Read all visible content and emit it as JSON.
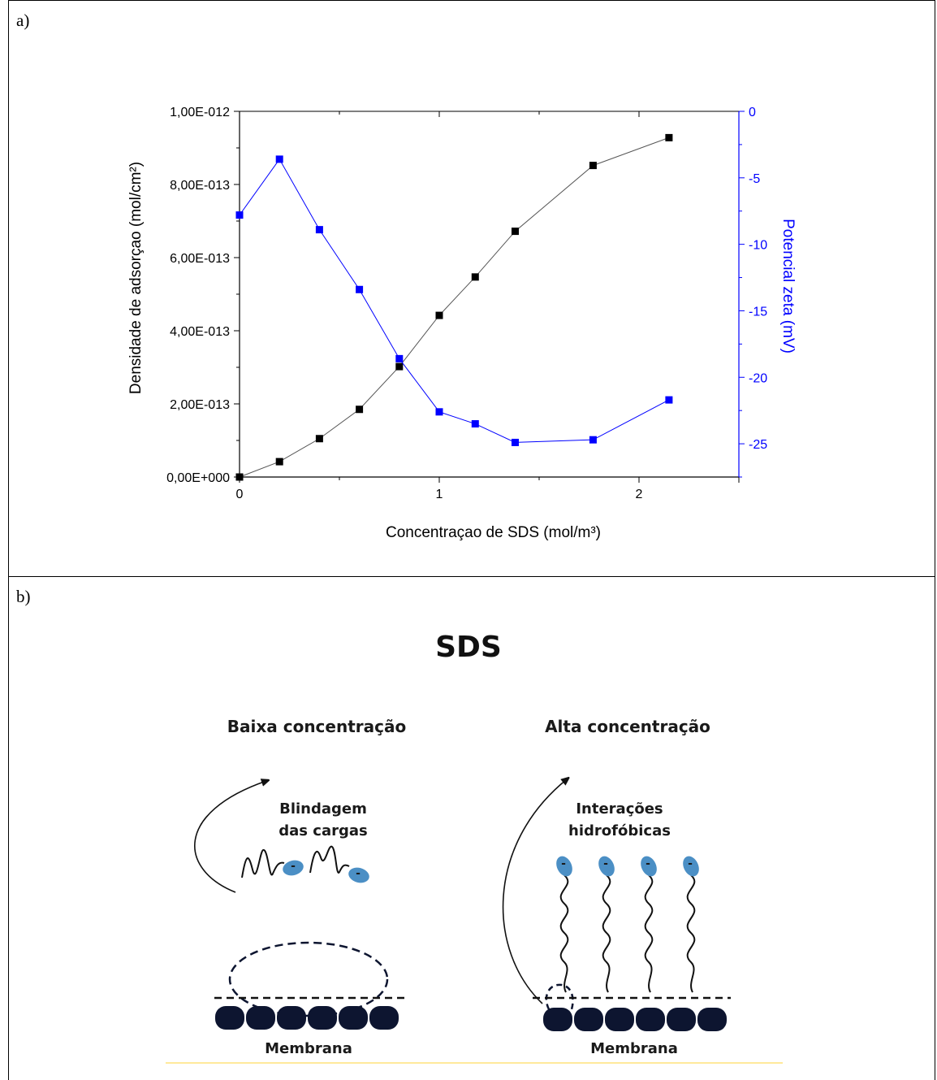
{
  "panel_a": {
    "label": "a)"
  },
  "panel_b": {
    "label": "b)",
    "title": "SDS",
    "low": {
      "heading": "Baixa concentração",
      "mechanism_line1": "Blindagem",
      "mechanism_line2": "das cargas",
      "membrane_label": "Membrana"
    },
    "high": {
      "heading": "Alta concentração",
      "mechanism_line1": "Interações",
      "mechanism_line2": "hidrofóbicas",
      "membrane_label": "Membrana"
    },
    "charge_symbol": "-"
  },
  "chart_data": {
    "type": "scatter",
    "xlabel": "Concentraçao de SDS (mol/m³)",
    "ylabel_left": "Densidade de adsorçao (mol/cm²)",
    "ylabel_right": "Potencial zeta (mV)",
    "xlim": [
      0,
      2.5
    ],
    "x_ticks": [
      "0",
      "1",
      "2"
    ],
    "ylim_left": [
      0,
      1e-12
    ],
    "y_ticks_left": [
      "0,00E+000",
      "2,00E-013",
      "4,00E-013",
      "6,00E-013",
      "8,00E-013",
      "1,00E-012"
    ],
    "ylim_right": [
      -27.5,
      0
    ],
    "y_ticks_right": [
      "0",
      "-5",
      "-10",
      "-15",
      "-20",
      "-25"
    ],
    "colors": {
      "adsorption": "#000000",
      "zeta": "#0000ff",
      "adsorption_line": "#555555"
    },
    "series": [
      {
        "axis": "left",
        "x": [
          0,
          0.2,
          0.4,
          0.6,
          0.8,
          1.0,
          1.18,
          1.38,
          1.77,
          2.15
        ],
        "values": [
          0,
          4.2e-14,
          1.05e-13,
          1.85e-13,
          3.02e-13,
          4.42e-13,
          5.47e-13,
          6.72e-13,
          8.52e-13,
          9.28e-13
        ]
      },
      {
        "axis": "right",
        "x": [
          0,
          0.2,
          0.4,
          0.6,
          0.8,
          1.0,
          1.18,
          1.38,
          1.77,
          2.15
        ],
        "values": [
          -7.8,
          -3.6,
          -8.9,
          -13.4,
          -18.6,
          -22.6,
          -23.5,
          -24.9,
          -24.7,
          -21.7
        ]
      }
    ]
  }
}
